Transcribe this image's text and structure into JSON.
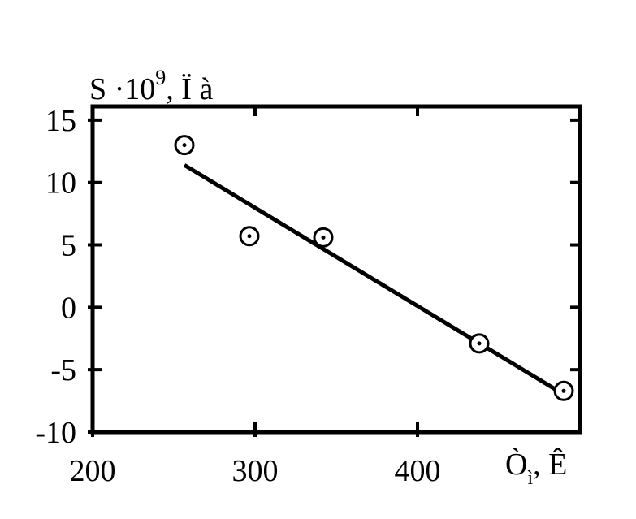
{
  "chart_data": {
    "type": "scatter",
    "y_label": "S ·10",
    "y_label_exponent": "9",
    "y_label_unit": ", Ï  à",
    "x_label": "Ò",
    "x_label_subscript": "ì",
    "x_label_unit": ", Ê",
    "x": [
      256.5,
      296.5,
      342,
      438,
      490
    ],
    "values": [
      13,
      5.7,
      5.6,
      -2.9,
      -6.7
    ],
    "fit_line": {
      "x": [
        256.5,
        486.5
      ],
      "values": [
        11.4,
        -6.7
      ]
    },
    "color": "#000000",
    "xlim": [
      200,
      500
    ],
    "xticks": [
      200,
      300,
      400
    ],
    "ylim": [
      -10,
      16.1
    ],
    "yticks": [
      -10,
      -5,
      0,
      5,
      10,
      15
    ]
  }
}
